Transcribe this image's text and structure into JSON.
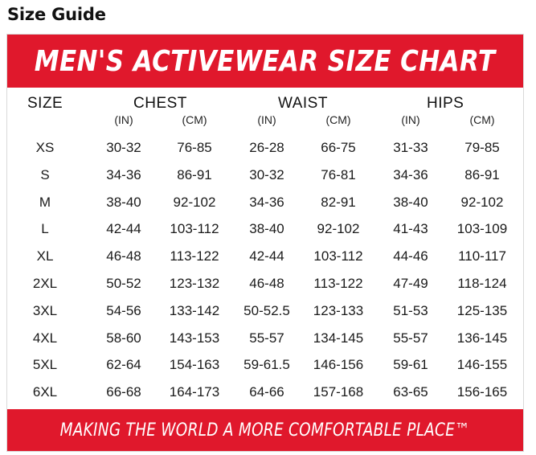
{
  "page": {
    "title": "Size Guide"
  },
  "chart": {
    "banner": "MEN'S ACTIVEWEAR SIZE CHART",
    "footer": "MAKING THE WORLD A MORE COMFORTABLE PLACE™",
    "headers": {
      "size": "SIZE",
      "chest": "CHEST",
      "waist": "WAIST",
      "hips": "HIPS"
    },
    "units": [
      "(IN)",
      "(CM)",
      "(IN)",
      "(CM)",
      "(IN)",
      "(CM)"
    ],
    "rows": [
      {
        "size": "XS",
        "cells": [
          "30-32",
          "76-85",
          "26-28",
          "66-75",
          "31-33",
          "79-85"
        ]
      },
      {
        "size": "S",
        "cells": [
          "34-36",
          "86-91",
          "30-32",
          "76-81",
          "34-36",
          "86-91"
        ]
      },
      {
        "size": "M",
        "cells": [
          "38-40",
          "92-102",
          "34-36",
          "82-91",
          "38-40",
          "92-102"
        ]
      },
      {
        "size": "L",
        "cells": [
          "42-44",
          "103-112",
          "38-40",
          "92-102",
          "41-43",
          "103-109"
        ]
      },
      {
        "size": "XL",
        "cells": [
          "46-48",
          "113-122",
          "42-44",
          "103-112",
          "44-46",
          "110-117"
        ]
      },
      {
        "size": "2XL",
        "cells": [
          "50-52",
          "123-132",
          "46-48",
          "113-122",
          "47-49",
          "118-124"
        ]
      },
      {
        "size": "3XL",
        "cells": [
          "54-56",
          "133-142",
          "50-52.5",
          "123-133",
          "51-53",
          "125-135"
        ]
      },
      {
        "size": "4XL",
        "cells": [
          "58-60",
          "143-153",
          "55-57",
          "134-145",
          "55-57",
          "136-145"
        ]
      },
      {
        "size": "5XL",
        "cells": [
          "62-64",
          "154-163",
          "59-61.5",
          "146-156",
          "59-61",
          "146-155"
        ]
      },
      {
        "size": "6XL",
        "cells": [
          "66-68",
          "164-173",
          "64-66",
          "157-168",
          "63-65",
          "156-165"
        ]
      }
    ]
  }
}
